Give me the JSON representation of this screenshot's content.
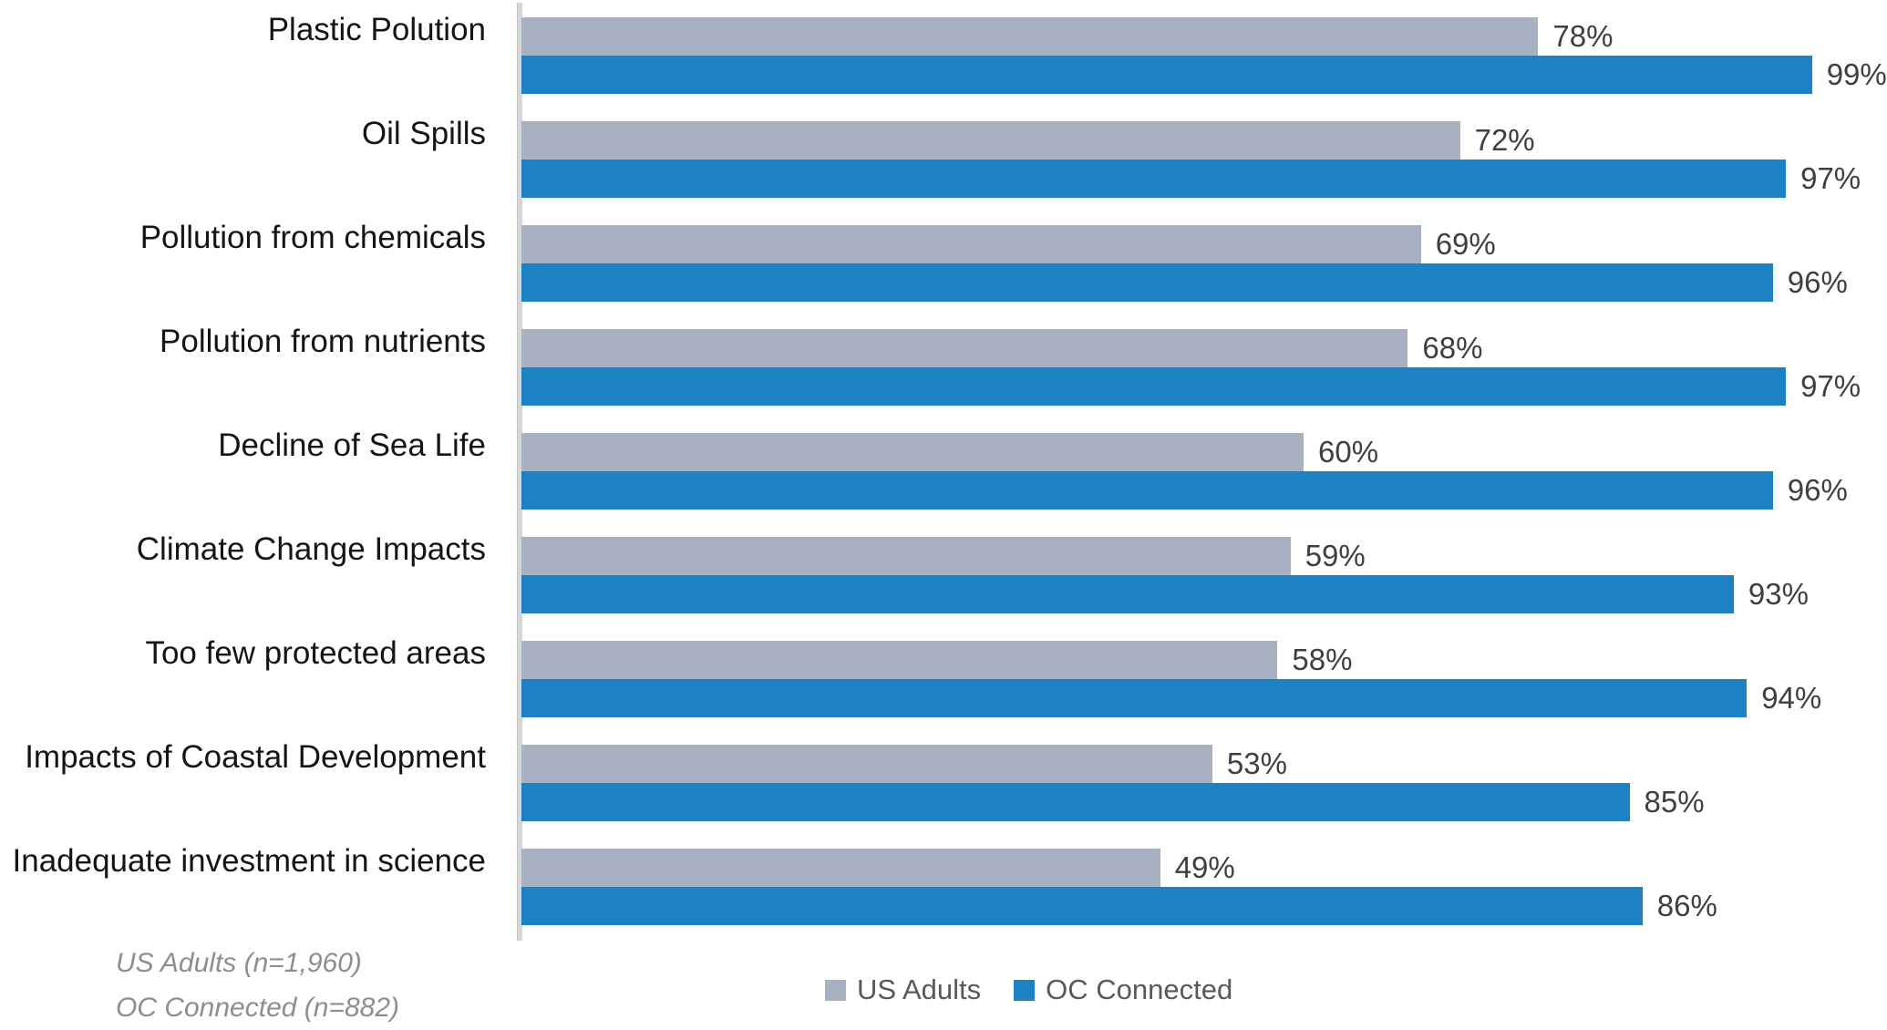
{
  "chart_data": {
    "type": "bar",
    "orientation": "horizontal",
    "title": "",
    "categories": [
      "Plastic Polution",
      "Oil Spills",
      "Pollution from chemicals",
      "Pollution from nutrients",
      "Decline of Sea Life",
      "Climate Change Impacts",
      "Too few protected areas",
      "Impacts of Coastal Development",
      "Inadequate investment in science"
    ],
    "series": [
      {
        "name": "US Adults",
        "color": "#a8b1c2",
        "values": [
          78,
          72,
          69,
          68,
          60,
          59,
          58,
          53,
          49
        ]
      },
      {
        "name": "OC Connected",
        "color": "#1d82c3",
        "values": [
          99,
          97,
          96,
          97,
          96,
          93,
          94,
          85,
          86
        ]
      }
    ],
    "value_suffix": "%",
    "xlim": [
      0,
      100
    ],
    "grid": false,
    "legend_position": "bottom"
  },
  "legend": {
    "items": [
      {
        "label": "US Adults",
        "color": "#a8b1c2"
      },
      {
        "label": "OC Connected",
        "color": "#1d82c3"
      }
    ]
  },
  "footnote": {
    "line1": "US Adults (n=1,960)",
    "line2": "OC Connected (n=882)"
  },
  "colors": {
    "axis_line": "#d6d6d6",
    "category_text": "#151515",
    "value_text": "#3f3f3f",
    "legend_text": "#595959",
    "footnote_text": "#8e8e8e",
    "background": "#ffffff"
  }
}
